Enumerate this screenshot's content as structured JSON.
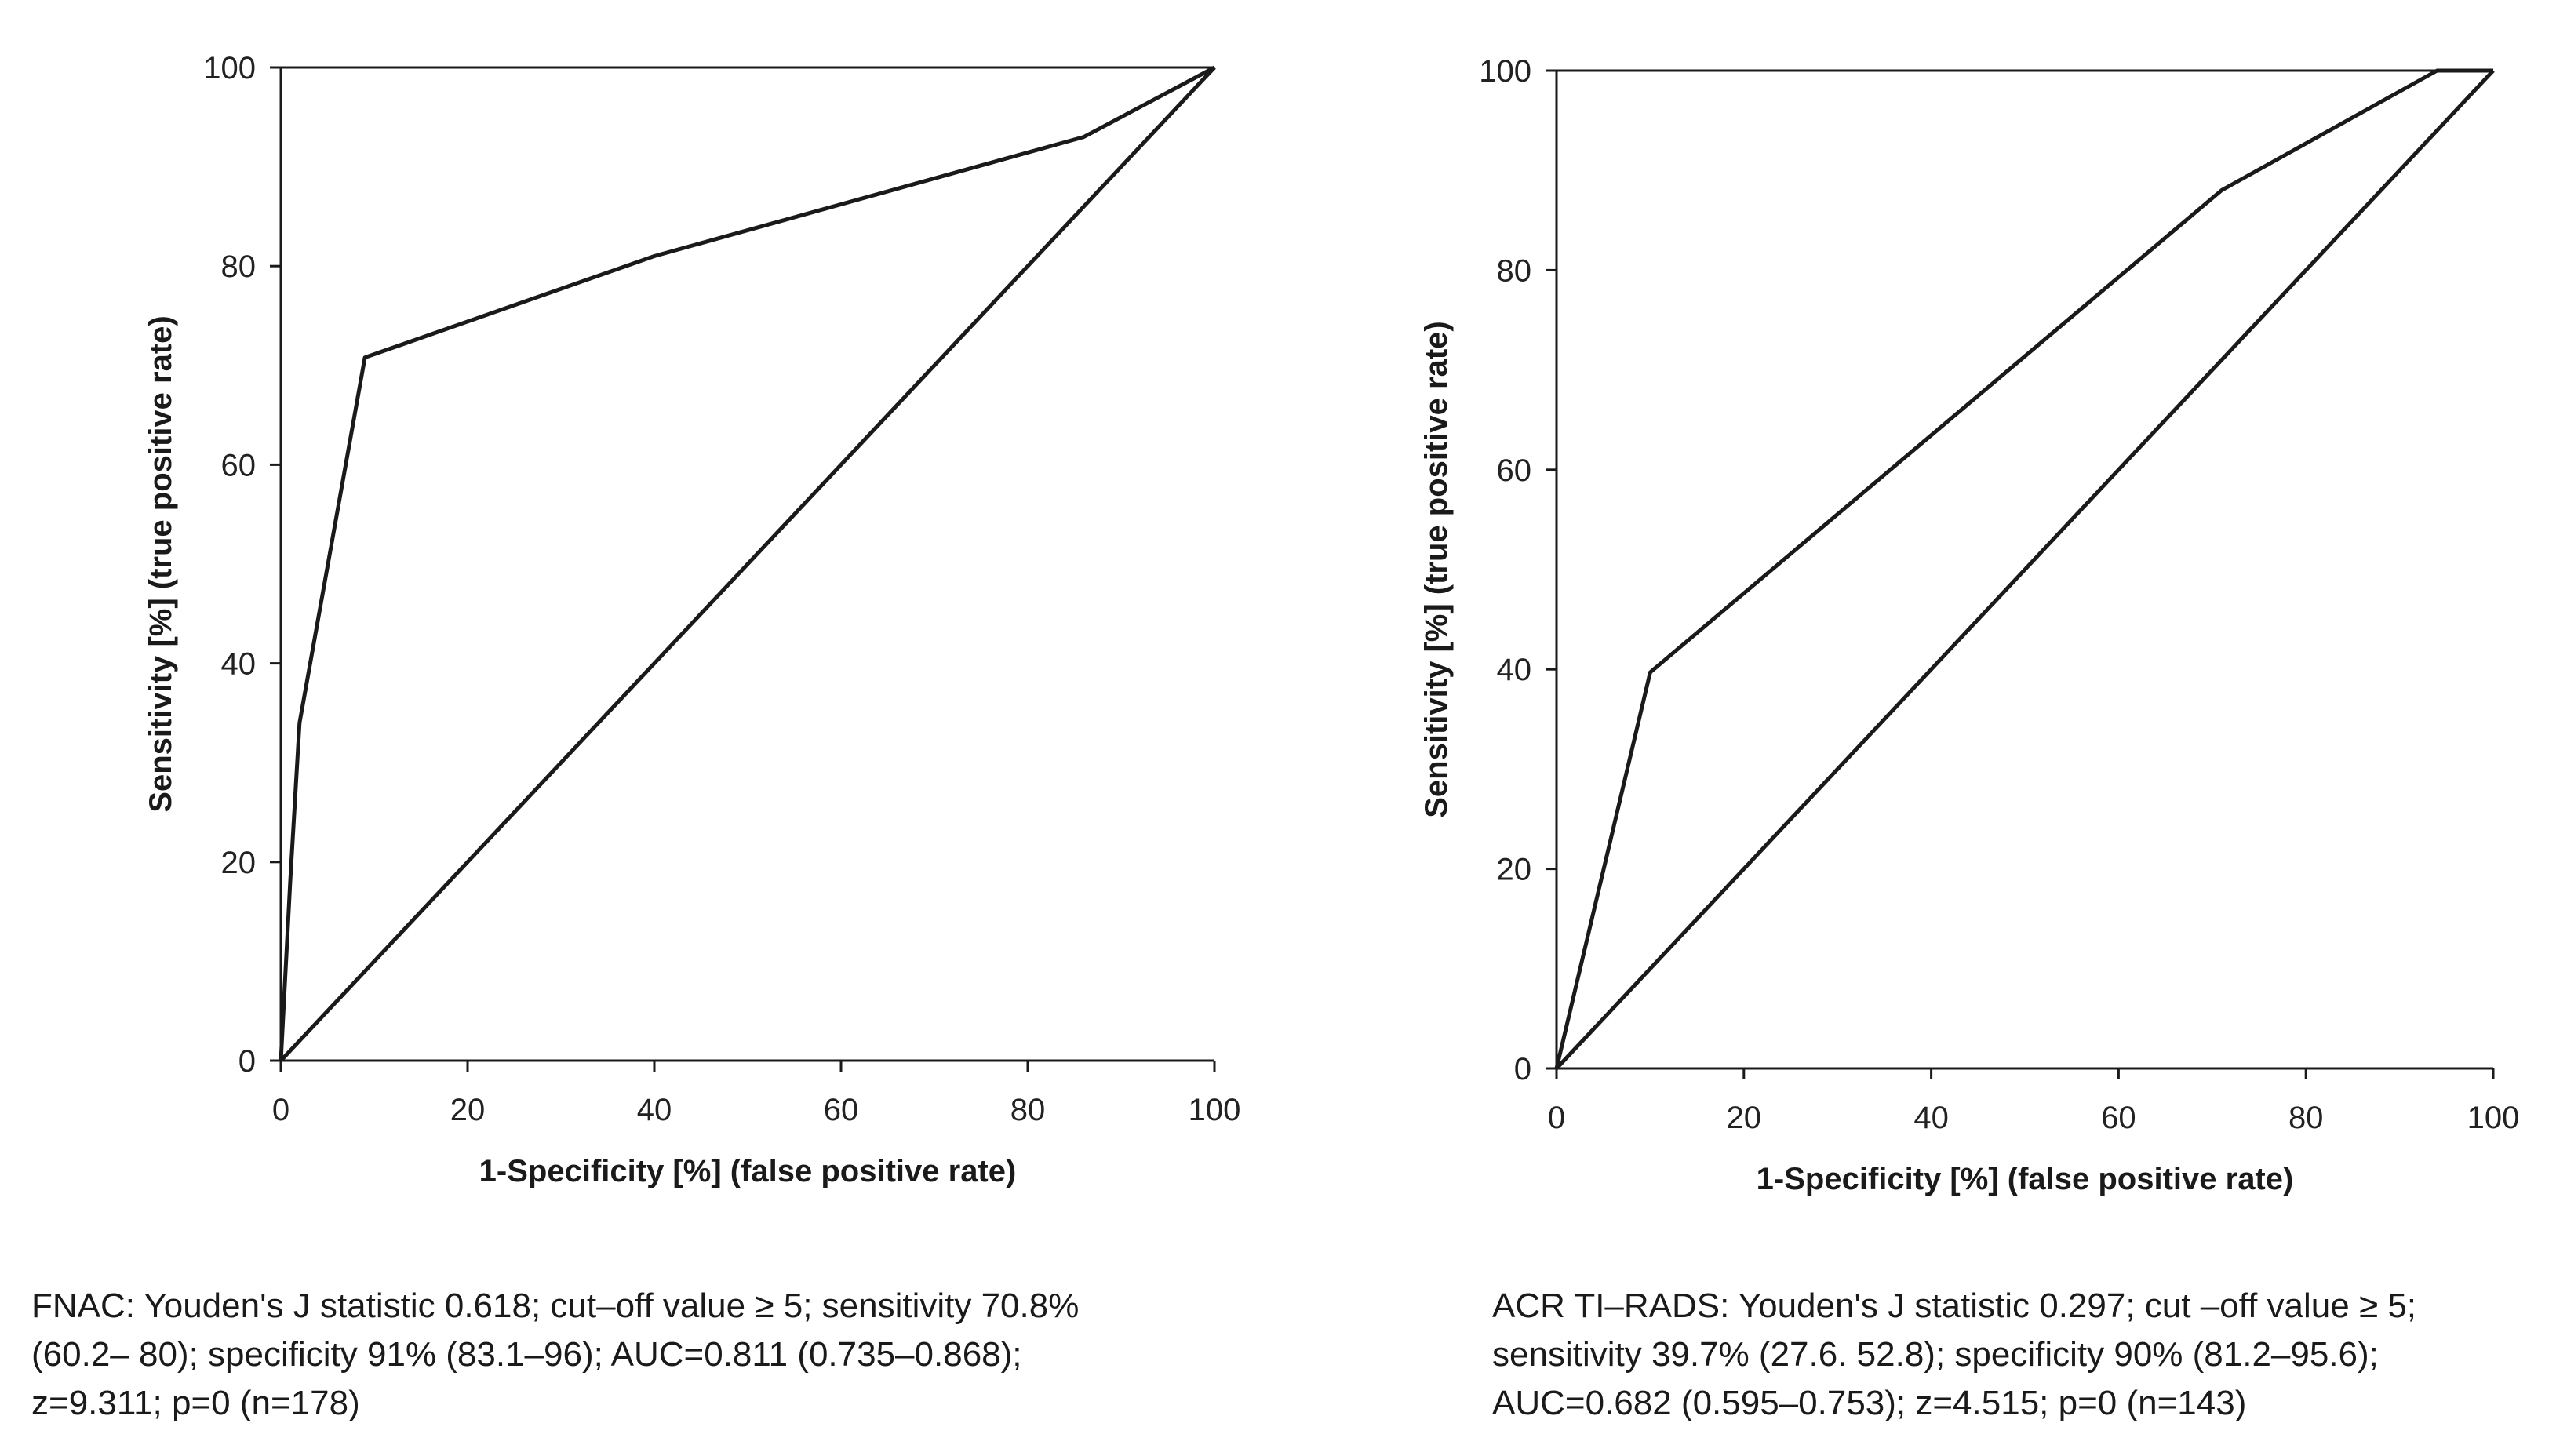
{
  "chart_data": [
    {
      "type": "line",
      "name": "FNAC",
      "xlabel": "1-Specificity [%] (false positive rate)",
      "ylabel": "Sensitivity [%] (true positive rate)",
      "xlim": [
        0,
        100
      ],
      "ylim": [
        0,
        100
      ],
      "xticks": [
        "0",
        "20",
        "40",
        "60",
        "80",
        "100"
      ],
      "yticks": [
        "0",
        "20",
        "40",
        "60",
        "80",
        "100"
      ],
      "grid": false,
      "series": [
        {
          "x": [
            0,
            1,
            2,
            9,
            40,
            86,
            100
          ],
          "y": [
            0,
            18,
            34,
            70.8,
            81,
            93,
            100
          ]
        },
        {
          "x": [
            0,
            100
          ],
          "y": [
            0,
            100
          ]
        }
      ],
      "caption_lines": [
        "FNAC: Youden's J statistic 0.618; cut–off value ≥ 5; sensitivity 70.8%",
        "(60.2– 80); specificity 91% (83.1–96); AUC=0.811 (0.735–0.868);",
        "z=9.311; p=0 (n=178)"
      ]
    },
    {
      "type": "line",
      "name": "ACR TI-RADS",
      "xlabel": "1-Specificity [%] (false positive rate)",
      "ylabel": "Sensitivity [%] (true positive rate)",
      "xlim": [
        0,
        100
      ],
      "ylim": [
        0,
        100
      ],
      "xticks": [
        "0",
        "20",
        "40",
        "60",
        "80",
        "100"
      ],
      "yticks": [
        "0",
        "20",
        "40",
        "60",
        "80",
        "100"
      ],
      "grid": false,
      "series": [
        {
          "x": [
            0,
            10,
            71,
            94,
            100
          ],
          "y": [
            0,
            39.7,
            88,
            100,
            100
          ]
        },
        {
          "x": [
            0,
            100
          ],
          "y": [
            0,
            100
          ]
        }
      ],
      "caption_lines": [
        "ACR TI–RADS: Youden's J statistic 0.297; cut –off value ≥ 5;",
        "sensitivity 39.7% (27.6. 52.8); specificity 90% (81.2–95.6);",
        "AUC=0.682 (0.595–0.753); z=4.515; p=0 (n=143)"
      ]
    }
  ]
}
